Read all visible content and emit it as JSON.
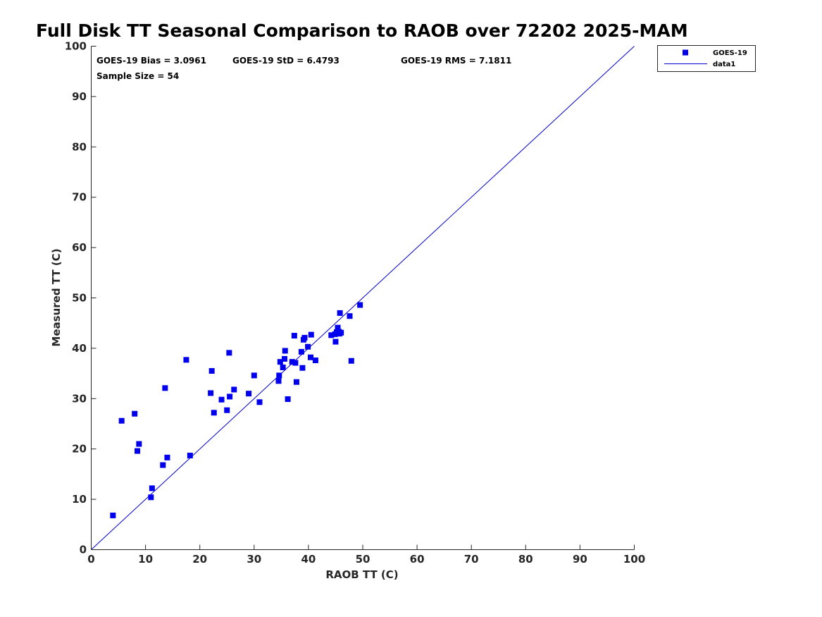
{
  "chart_data": {
    "type": "scatter",
    "title": "Full Disk TT Seasonal Comparison to RAOB over 72202 2025-MAM",
    "xlabel": "RAOB TT (C)",
    "ylabel": "Measured TT (C)",
    "xlim": [
      0,
      100
    ],
    "ylim": [
      0,
      100
    ],
    "xticks": [
      "0",
      "10",
      "20",
      "30",
      "40",
      "50",
      "60",
      "70",
      "80",
      "90",
      "100"
    ],
    "yticks": [
      "0",
      "10",
      "20",
      "30",
      "40",
      "50",
      "60",
      "70",
      "80",
      "90",
      "100"
    ],
    "stats": {
      "bias": "GOES-19 Bias = 3.0961",
      "std": "GOES-19 StD = 6.4793",
      "rms": "GOES-19 RMS = 7.1811",
      "sample": "Sample Size = 54"
    },
    "legend": {
      "position": "top-right outside",
      "entries": [
        "GOES-19",
        "data1"
      ]
    },
    "colors": {
      "series": "#0000ee",
      "reference": "#0000cc"
    },
    "series": [
      {
        "name": "GOES-19",
        "points": [
          [
            4.0,
            6.8
          ],
          [
            5.6,
            25.6
          ],
          [
            8.0,
            27.0
          ],
          [
            8.5,
            19.6
          ],
          [
            8.8,
            21.0
          ],
          [
            11.0,
            10.4
          ],
          [
            11.2,
            12.2
          ],
          [
            13.2,
            16.8
          ],
          [
            13.6,
            32.1
          ],
          [
            14.0,
            18.3
          ],
          [
            17.5,
            37.7
          ],
          [
            18.2,
            18.7
          ],
          [
            22.0,
            31.1
          ],
          [
            22.2,
            35.5
          ],
          [
            22.6,
            27.2
          ],
          [
            24.0,
            29.8
          ],
          [
            25.0,
            27.7
          ],
          [
            25.4,
            39.1
          ],
          [
            25.5,
            30.4
          ],
          [
            26.3,
            31.8
          ],
          [
            29.0,
            31.0
          ],
          [
            30.0,
            34.6
          ],
          [
            31.0,
            29.3
          ],
          [
            34.5,
            33.5
          ],
          [
            34.6,
            34.6
          ],
          [
            34.8,
            37.3
          ],
          [
            35.3,
            36.2
          ],
          [
            35.6,
            37.9
          ],
          [
            35.7,
            39.5
          ],
          [
            36.2,
            29.9
          ],
          [
            37.0,
            37.3
          ],
          [
            37.4,
            42.5
          ],
          [
            37.6,
            37.1
          ],
          [
            37.8,
            33.3
          ],
          [
            38.7,
            39.3
          ],
          [
            38.9,
            36.1
          ],
          [
            39.1,
            41.7
          ],
          [
            39.3,
            42.1
          ],
          [
            39.9,
            40.3
          ],
          [
            40.4,
            38.2
          ],
          [
            40.5,
            42.7
          ],
          [
            41.3,
            37.6
          ],
          [
            44.2,
            42.6
          ],
          [
            44.9,
            42.8
          ],
          [
            45.0,
            41.3
          ],
          [
            45.2,
            43.2
          ],
          [
            45.4,
            44.1
          ],
          [
            45.6,
            43.3
          ],
          [
            45.7,
            42.9
          ],
          [
            45.8,
            47.0
          ],
          [
            46.0,
            43.1
          ],
          [
            47.6,
            46.4
          ],
          [
            47.9,
            37.5
          ],
          [
            49.5,
            48.6
          ]
        ]
      },
      {
        "name": "data1",
        "type": "line",
        "points": [
          [
            0,
            0
          ],
          [
            100,
            100
          ]
        ]
      }
    ]
  }
}
